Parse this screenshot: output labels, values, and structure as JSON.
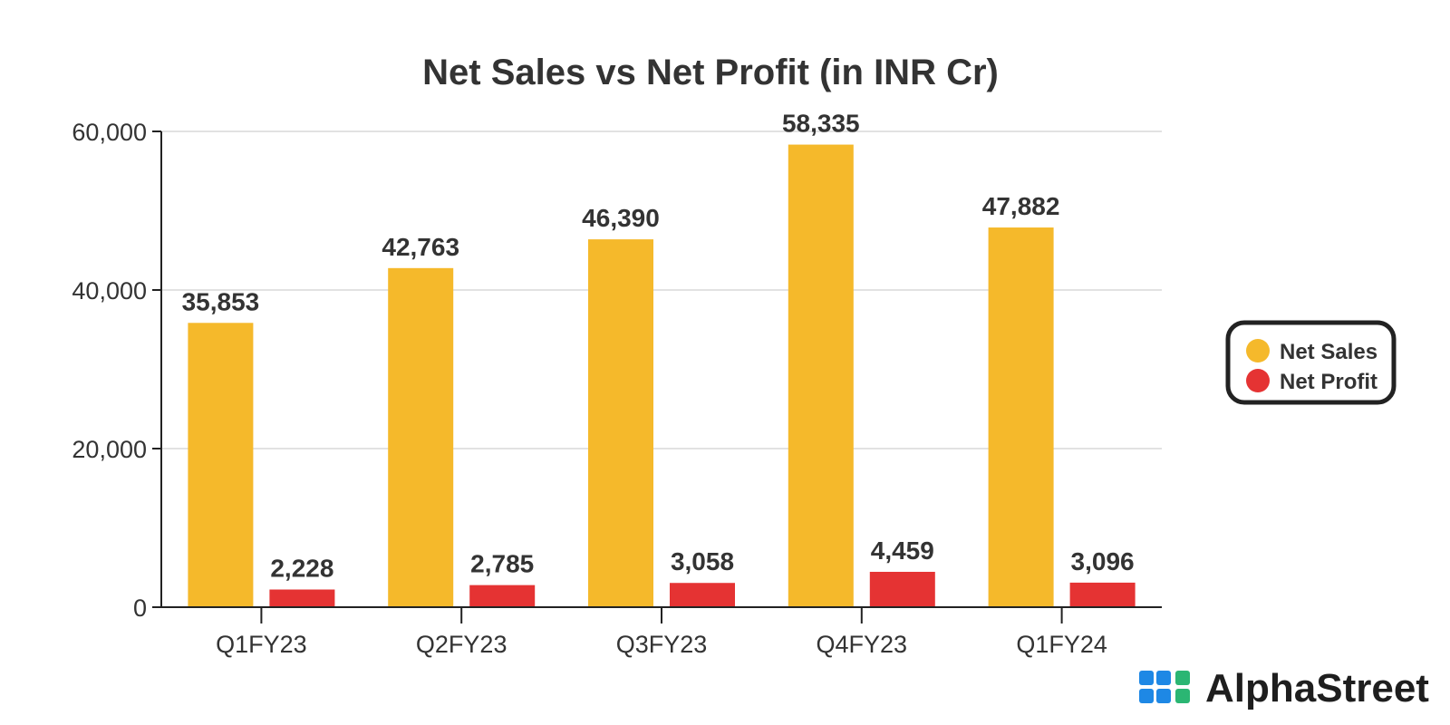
{
  "chart_data": {
    "type": "bar",
    "title": "Net Sales vs Net Profit (in INR Cr)",
    "categories": [
      "Q1FY23",
      "Q2FY23",
      "Q3FY23",
      "Q4FY23",
      "Q1FY24"
    ],
    "series": [
      {
        "name": "Net Sales",
        "values": [
          35853,
          42763,
          46390,
          58335,
          47882
        ],
        "labels": [
          "35,853",
          "42,763",
          "46,390",
          "58,335",
          "47,882"
        ],
        "color": "#F5B92B"
      },
      {
        "name": "Net Profit",
        "values": [
          2228,
          2785,
          3058,
          4459,
          3096
        ],
        "labels": [
          "2,228",
          "2,785",
          "3,058",
          "4,459",
          "3,096"
        ],
        "color": "#E53333"
      }
    ],
    "xlabel": "",
    "ylabel": "",
    "ylim": [
      0,
      60000
    ],
    "yticks": [
      0,
      20000,
      40000,
      60000
    ],
    "ytick_labels": [
      "0",
      "20,000",
      "40,000",
      "60,000"
    ],
    "grid": true,
    "legend_position": "right"
  },
  "brand": {
    "name": "AlphaStreet",
    "icon": "alphastreet-logo-icon",
    "colors": [
      "#1E88E5",
      "#2BB673"
    ]
  }
}
